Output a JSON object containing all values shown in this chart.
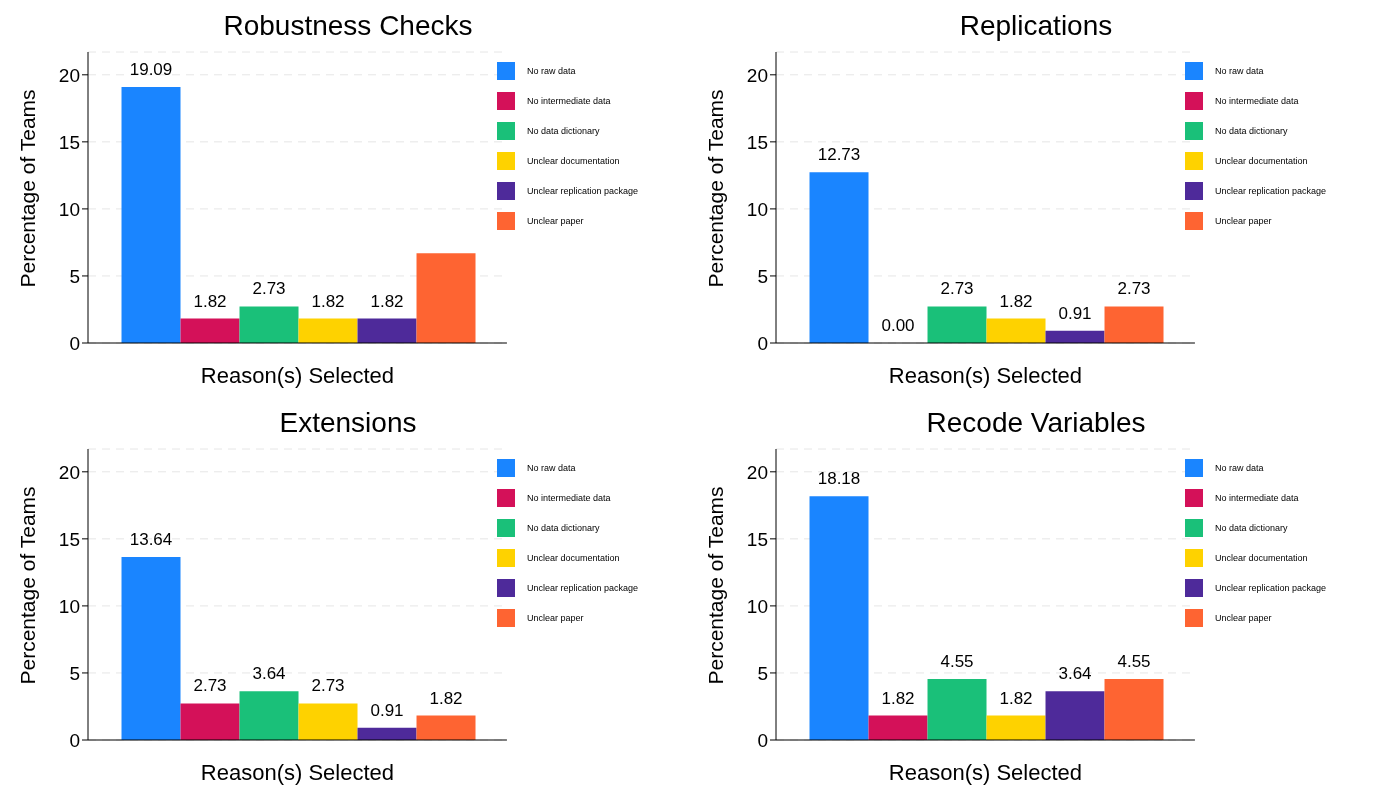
{
  "chart_data": [
    {
      "type": "bar",
      "title": "Robustness Checks",
      "xlabel": "Reason(s) Selected",
      "ylabel": "Percentage of Teams",
      "categories": [
        null
      ],
      "ylim": [
        0,
        21.7
      ],
      "yticks": [
        0,
        5,
        10,
        15,
        20
      ],
      "grid": "y",
      "legend": "top right",
      "series": [
        {
          "name": "No raw data",
          "color": "#1a85ff",
          "values": [
            19.09
          ],
          "value_labels": [
            "19.09"
          ]
        },
        {
          "name": "No intermediate data",
          "color": "#d41159",
          "values": [
            1.82
          ],
          "value_labels": [
            "1.82"
          ]
        },
        {
          "name": "No data dictionary",
          "color": "#1ac079",
          "values": [
            2.73
          ],
          "value_labels": [
            "2.73"
          ]
        },
        {
          "name": "Unclear documentation",
          "color": "#fed200",
          "values": [
            1.82
          ],
          "value_labels": [
            "1.82"
          ]
        },
        {
          "name": "Unclear replication package",
          "color": "#4e2a9a",
          "values": [
            1.82
          ],
          "value_labels": [
            "1.82"
          ]
        },
        {
          "name": "Unclear paper",
          "color": "#fe6432",
          "values": [
            6.7
          ],
          "value_labels": [
            null
          ]
        }
      ]
    },
    {
      "type": "bar",
      "title": "Replications",
      "xlabel": "Reason(s) Selected",
      "ylabel": "Percentage of Teams",
      "categories": [
        null
      ],
      "ylim": [
        0,
        21.7
      ],
      "yticks": [
        0,
        5,
        10,
        15,
        20
      ],
      "grid": "y",
      "legend": "top right",
      "series": [
        {
          "name": "No raw data",
          "color": "#1a85ff",
          "values": [
            12.73
          ],
          "value_labels": [
            "12.73"
          ]
        },
        {
          "name": "No intermediate data",
          "color": "#d41159",
          "values": [
            0
          ],
          "value_labels": [
            "0.00"
          ]
        },
        {
          "name": "No data dictionary",
          "color": "#1ac079",
          "values": [
            2.73
          ],
          "value_labels": [
            "2.73"
          ]
        },
        {
          "name": "Unclear documentation",
          "color": "#fed200",
          "values": [
            1.82
          ],
          "value_labels": [
            "1.82"
          ]
        },
        {
          "name": "Unclear replication package",
          "color": "#4e2a9a",
          "values": [
            0.91
          ],
          "value_labels": [
            "0.91"
          ]
        },
        {
          "name": "Unclear paper",
          "color": "#fe6432",
          "values": [
            2.73
          ],
          "value_labels": [
            "2.73"
          ]
        }
      ]
    },
    {
      "type": "bar",
      "title": "Extensions",
      "xlabel": "Reason(s) Selected",
      "ylabel": "Percentage of Teams",
      "categories": [
        null
      ],
      "ylim": [
        0,
        21.7
      ],
      "yticks": [
        0,
        5,
        10,
        15,
        20
      ],
      "grid": "y",
      "legend": "top right",
      "series": [
        {
          "name": "No raw data",
          "color": "#1a85ff",
          "values": [
            13.64
          ],
          "value_labels": [
            "13.64"
          ]
        },
        {
          "name": "No intermediate data",
          "color": "#d41159",
          "values": [
            2.73
          ],
          "value_labels": [
            "2.73"
          ]
        },
        {
          "name": "No data dictionary",
          "color": "#1ac079",
          "values": [
            3.64
          ],
          "value_labels": [
            "3.64"
          ]
        },
        {
          "name": "Unclear documentation",
          "color": "#fed200",
          "values": [
            2.73
          ],
          "value_labels": [
            "2.73"
          ]
        },
        {
          "name": "Unclear replication package",
          "color": "#4e2a9a",
          "values": [
            0.91
          ],
          "value_labels": [
            "0.91"
          ]
        },
        {
          "name": "Unclear paper",
          "color": "#fe6432",
          "values": [
            1.82
          ],
          "value_labels": [
            "1.82"
          ]
        }
      ]
    },
    {
      "type": "bar",
      "title": "Recode Variables",
      "xlabel": "Reason(s) Selected",
      "ylabel": "Percentage of Teams",
      "categories": [
        null
      ],
      "ylim": [
        0,
        21.7
      ],
      "yticks": [
        0,
        5,
        10,
        15,
        20
      ],
      "grid": "y",
      "legend": "top right",
      "series": [
        {
          "name": "No raw data",
          "color": "#1a85ff",
          "values": [
            18.18
          ],
          "value_labels": [
            "18.18"
          ]
        },
        {
          "name": "No intermediate data",
          "color": "#d41159",
          "values": [
            1.82
          ],
          "value_labels": [
            "1.82"
          ]
        },
        {
          "name": "No data dictionary",
          "color": "#1ac079",
          "values": [
            4.55
          ],
          "value_labels": [
            "4.55"
          ]
        },
        {
          "name": "Unclear documentation",
          "color": "#fed200",
          "values": [
            1.82
          ],
          "value_labels": [
            "1.82"
          ]
        },
        {
          "name": "Unclear replication package",
          "color": "#4e2a9a",
          "values": [
            3.64
          ],
          "value_labels": [
            "3.64"
          ]
        },
        {
          "name": "Unclear paper",
          "color": "#fe6432",
          "values": [
            4.55
          ],
          "value_labels": [
            "4.55"
          ]
        }
      ]
    }
  ]
}
